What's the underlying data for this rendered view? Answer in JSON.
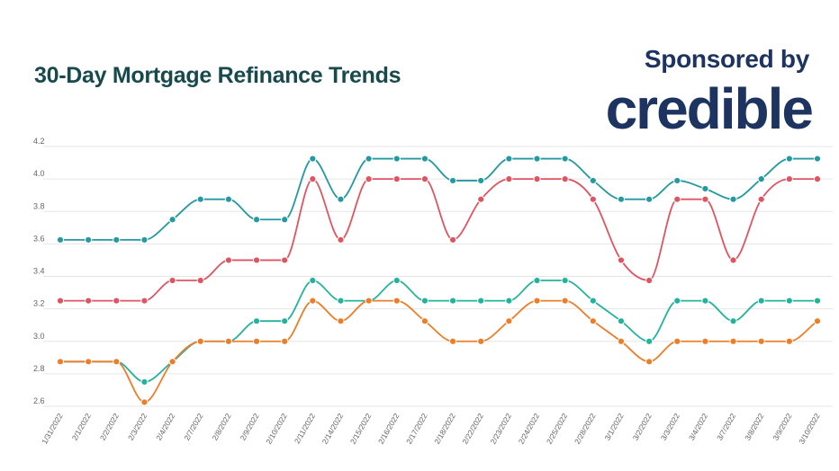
{
  "chart_data": {
    "type": "line",
    "title": "30-Day Mortgage Refinance Trends",
    "sponsor_text": "Sponsored by",
    "sponsor_logo": "credible",
    "ylim": [
      2.6,
      4.2
    ],
    "yticks": [
      "2.6",
      "2.8",
      "3.0",
      "3.2",
      "3.4",
      "3.6",
      "3.8",
      "4.0",
      "4.2"
    ],
    "grid": true,
    "categories": [
      "1/31/2022",
      "2/1/2022",
      "2/2/2022",
      "2/3/2022",
      "2/4/2022",
      "2/7/2022",
      "2/8/2022",
      "2/9/2022",
      "2/10/2022",
      "2/11/2022",
      "2/14/2022",
      "2/15/2022",
      "2/16/2022",
      "2/17/2022",
      "2/18/2022",
      "2/22/2022",
      "2/23/2022",
      "2/24/2022",
      "2/25/2022",
      "2/28/2022",
      "3/1/2022",
      "3/2/2022",
      "3/3/2022",
      "3/4/2022",
      "3/7/2022",
      "3/8/2022",
      "3/9/2022",
      "3/10/2022"
    ],
    "series": [
      {
        "color": "#2399a0",
        "values": [
          3.625,
          3.625,
          3.625,
          3.625,
          3.75,
          3.875,
          3.875,
          3.75,
          3.75,
          4.125,
          3.875,
          4.125,
          4.125,
          4.125,
          3.99,
          3.99,
          4.125,
          4.125,
          4.125,
          3.99,
          3.875,
          3.875,
          3.99,
          3.94,
          3.875,
          4.0,
          4.125,
          4.125
        ]
      },
      {
        "color": "#df5461",
        "values": [
          3.25,
          3.25,
          3.25,
          3.25,
          3.375,
          3.375,
          3.5,
          3.5,
          3.5,
          4.0,
          3.625,
          4.0,
          4.0,
          4.0,
          3.625,
          3.875,
          4.0,
          4.0,
          4.0,
          3.875,
          3.5,
          3.375,
          3.875,
          3.875,
          3.5,
          3.875,
          4.0,
          4.0
        ]
      },
      {
        "color": "#22b39c",
        "values": [
          2.875,
          2.875,
          2.875,
          2.75,
          2.875,
          3.0,
          3.0,
          3.125,
          3.125,
          3.375,
          3.25,
          3.25,
          3.375,
          3.25,
          3.25,
          3.25,
          3.25,
          3.375,
          3.375,
          3.25,
          3.125,
          3.0,
          3.25,
          3.25,
          3.125,
          3.25,
          3.25,
          3.25
        ]
      },
      {
        "color": "#ee7d27",
        "values": [
          2.875,
          2.875,
          2.875,
          2.625,
          2.875,
          3.0,
          3.0,
          3.0,
          3.0,
          3.25,
          3.125,
          3.25,
          3.25,
          3.125,
          3.0,
          3.0,
          3.125,
          3.25,
          3.25,
          3.125,
          3.0,
          2.875,
          3.0,
          3.0,
          3.0,
          3.0,
          3.0,
          3.125
        ]
      }
    ]
  }
}
